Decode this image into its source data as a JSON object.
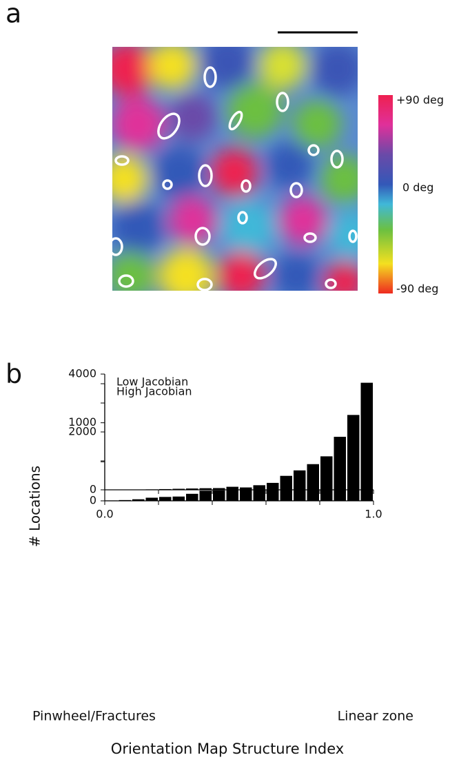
{
  "panel_labels": [
    "a",
    "b"
  ],
  "orientation_map": {
    "colorbar_labels": [
      "+90 deg",
      "0 deg",
      "-90 deg"
    ]
  },
  "y_label": "# Locations",
  "x_label": "Orientation Map Structure Index",
  "x_end_labels": [
    "Pinwheel/Fractures",
    "Linear zone"
  ],
  "chart_data": [
    {
      "type": "histogram",
      "title": "High Jacobian",
      "color": "#000000",
      "bins": [
        0,
        0.05,
        0.1,
        0.15,
        0.2,
        0.25,
        0.3,
        0.35,
        0.4,
        0.45,
        0.5,
        0.55,
        0.6,
        0.65,
        0.7,
        0.75,
        0.8,
        0.85,
        0.9,
        0.95,
        1.0
      ],
      "values": [
        5,
        10,
        20,
        40,
        50,
        55,
        90,
        130,
        135,
        180,
        170,
        200,
        230,
        320,
        390,
        470,
        570,
        820,
        1100,
        1480
      ],
      "xlim": [
        0,
        1.0
      ],
      "xminor": [
        0,
        0.2,
        0.4,
        0.6,
        0.8,
        1.0
      ],
      "ylim": [
        0,
        1500
      ],
      "yticks": [
        0,
        1000
      ],
      "yminor": [
        500,
        1500
      ]
    },
    {
      "type": "histogram",
      "title": "Low Jacobian",
      "color": "#000000",
      "bins": [
        0,
        0.05,
        0.1,
        0.15,
        0.2,
        0.25,
        0.3,
        0.35,
        0.4,
        0.45,
        0.5,
        0.55,
        0.6,
        0.65,
        0.7,
        0.75,
        0.8,
        0.85,
        0.9,
        0.95,
        1.0
      ],
      "values": [
        3,
        5,
        10,
        15,
        25,
        35,
        45,
        55,
        60,
        70,
        80,
        90,
        110,
        140,
        180,
        260,
        360,
        580,
        960,
        3700
      ],
      "xlim": [
        0,
        1.0
      ],
      "xticks": [
        {
          "value": 0,
          "label": "0.0"
        },
        {
          "value": 1.0,
          "label": "1.0"
        }
      ],
      "xminor": [
        0.2,
        0.4,
        0.6,
        0.8
      ],
      "ylim": [
        0,
        4000
      ],
      "yticks": [
        0,
        2000,
        4000
      ],
      "yminor": [
        1000,
        3000
      ]
    }
  ]
}
